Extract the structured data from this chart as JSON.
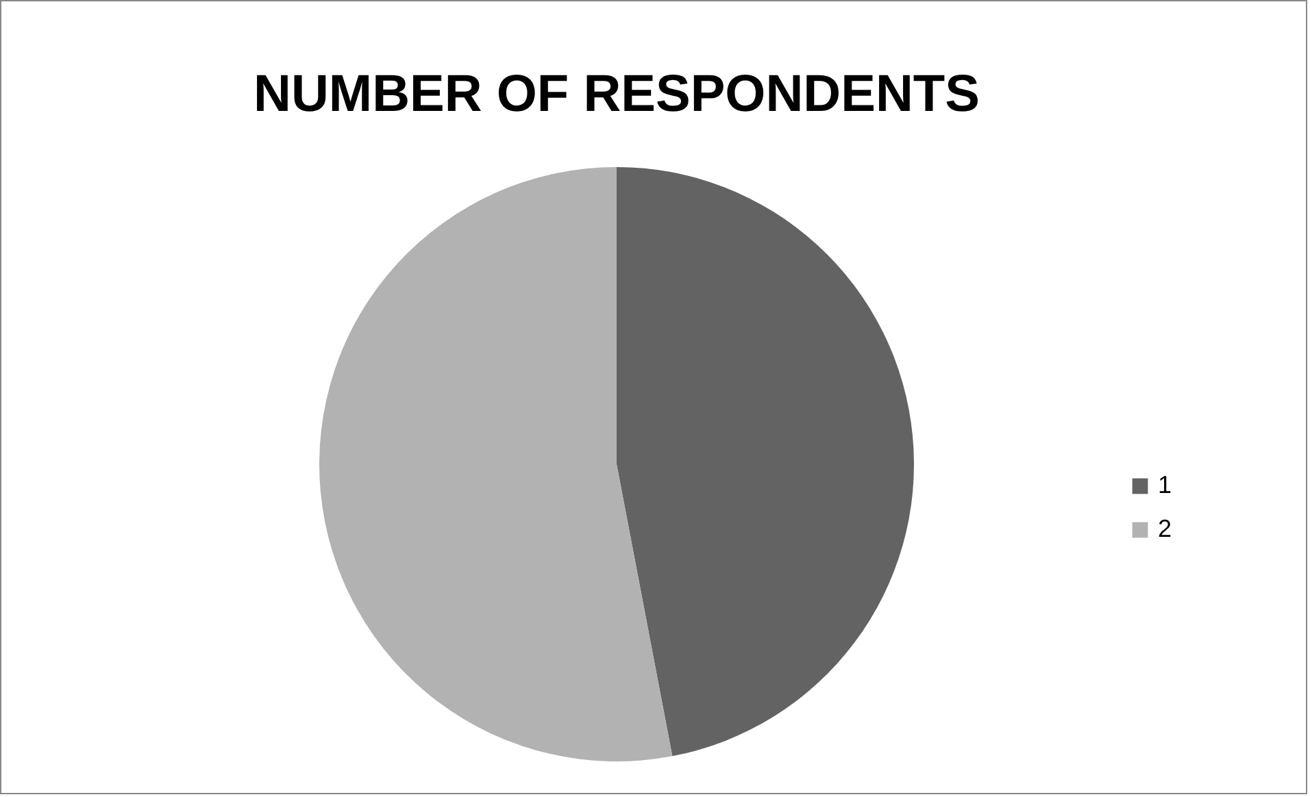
{
  "chart_data": {
    "type": "pie",
    "title": "NUMBER OF RESPONDENTS",
    "categories": [
      "1",
      "2"
    ],
    "values": [
      47,
      53
    ],
    "colors": [
      "#636363",
      "#b2b2b2"
    ],
    "legend": "right"
  }
}
